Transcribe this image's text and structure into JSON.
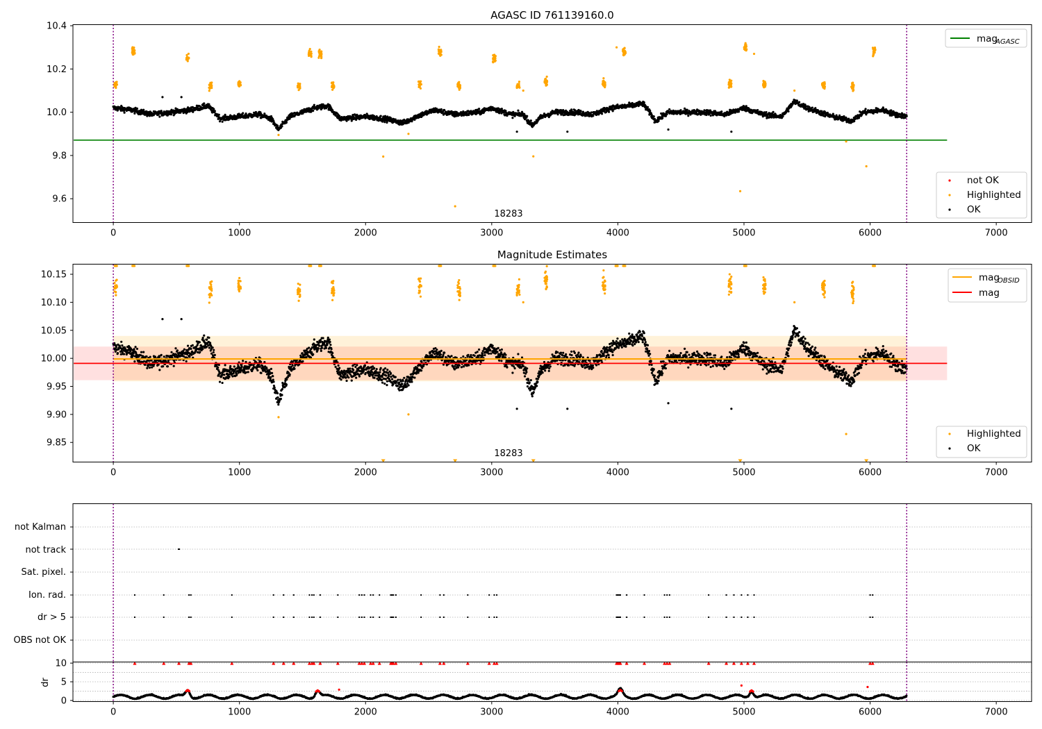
{
  "colors": {
    "ok": "#000000",
    "highlighted": "#ffa500",
    "not_ok": "#ff0000",
    "mag_agasc": "#008000",
    "mag_obsid": "#ffa500",
    "mag": "#ff0000",
    "boundary": "#800080"
  },
  "chart_data": [
    {
      "id": "top",
      "type": "scatter",
      "title": "AGASC ID 761139160.0",
      "xlabel": "",
      "ylabel": "",
      "xlim": [
        -320,
        7280
      ],
      "ylim": [
        9.49,
        10.405
      ],
      "xticks": [
        0,
        1000,
        2000,
        3000,
        4000,
        5000,
        6000,
        7000
      ],
      "xtick_labels": [
        "0",
        "1000",
        "2000",
        "3000",
        "4000",
        "5000",
        "6000",
        "7000"
      ],
      "yticks": [
        9.6,
        9.8,
        10.0,
        10.2,
        10.4
      ],
      "ytick_labels": [
        "9.6",
        "9.8",
        "10.0",
        "10.2",
        "10.4"
      ],
      "obsid_label": "18283",
      "obsid_label_x": 3150,
      "obsid_bounds": [
        0,
        6290
      ],
      "mag_agasc": {
        "value": 9.871,
        "x": [
          0,
          6610
        ]
      },
      "line_legend": [
        {
          "label": "mag",
          "sub": "AGASC",
          "color": "#008000"
        }
      ],
      "legend": [
        {
          "label": "not OK",
          "color": "#ff0000"
        },
        {
          "label": "Highlighted",
          "color": "#ffa500"
        },
        {
          "label": "OK",
          "color": "#000000"
        }
      ],
      "series": [
        {
          "name": "OK",
          "color": "#000000",
          "curve": [
            [
              0,
              10.02
            ],
            [
              150,
              10.01
            ],
            [
              300,
              9.99
            ],
            [
              450,
              10.0
            ],
            [
              600,
              10.01
            ],
            [
              750,
              10.03
            ],
            [
              850,
              9.97
            ],
            [
              1000,
              9.98
            ],
            [
              1150,
              9.99
            ],
            [
              1250,
              9.97
            ],
            [
              1310,
              9.92
            ],
            [
              1400,
              9.98
            ],
            [
              1500,
              10.0
            ],
            [
              1600,
              10.02
            ],
            [
              1700,
              10.03
            ],
            [
              1800,
              9.97
            ],
            [
              2000,
              9.98
            ],
            [
              2150,
              9.97
            ],
            [
              2300,
              9.95
            ],
            [
              2400,
              9.98
            ],
            [
              2550,
              10.01
            ],
            [
              2700,
              9.99
            ],
            [
              2900,
              10.0
            ],
            [
              3000,
              10.02
            ],
            [
              3150,
              9.99
            ],
            [
              3250,
              9.99
            ],
            [
              3320,
              9.94
            ],
            [
              3400,
              9.98
            ],
            [
              3500,
              10.0
            ],
            [
              3650,
              10.0
            ],
            [
              3800,
              9.99
            ],
            [
              3950,
              10.02
            ],
            [
              4100,
              10.03
            ],
            [
              4200,
              10.04
            ],
            [
              4300,
              9.96
            ],
            [
              4400,
              10.0
            ],
            [
              4550,
              10.0
            ],
            [
              4700,
              10.0
            ],
            [
              4850,
              9.99
            ],
            [
              5000,
              10.02
            ],
            [
              5150,
              9.99
            ],
            [
              5300,
              9.98
            ],
            [
              5400,
              10.05
            ],
            [
              5500,
              10.02
            ],
            [
              5700,
              9.98
            ],
            [
              5850,
              9.96
            ],
            [
              5950,
              10.0
            ],
            [
              6100,
              10.01
            ],
            [
              6200,
              9.99
            ],
            [
              6290,
              9.98
            ]
          ],
          "outliers": [
            [
              390,
              10.07
            ],
            [
              540,
              10.07
            ],
            [
              3200,
              9.91
            ],
            [
              3600,
              9.91
            ],
            [
              4400,
              9.92
            ],
            [
              4900,
              9.91
            ]
          ]
        },
        {
          "name": "Highlighted",
          "color": "#ffa500",
          "clusters": [
            [
              20,
              10.13
            ],
            [
              160,
              10.28
            ],
            [
              590,
              10.25
            ],
            [
              770,
              10.12
            ],
            [
              1000,
              10.13
            ],
            [
              1470,
              10.12
            ],
            [
              1560,
              10.27
            ],
            [
              1640,
              10.27
            ],
            [
              1740,
              10.12
            ],
            [
              2430,
              10.13
            ],
            [
              2590,
              10.28
            ],
            [
              2740,
              10.12
            ],
            [
              3020,
              10.25
            ],
            [
              3210,
              10.12
            ],
            [
              3430,
              10.14
            ],
            [
              3890,
              10.13
            ],
            [
              4050,
              10.28
            ],
            [
              4890,
              10.13
            ],
            [
              5010,
              10.3
            ],
            [
              5160,
              10.13
            ],
            [
              5630,
              10.13
            ],
            [
              5860,
              10.12
            ],
            [
              6030,
              10.28
            ]
          ],
          "singles": [
            [
              2140,
              9.795
            ],
            [
              2710,
              9.565
            ],
            [
              3330,
              9.796
            ],
            [
              4970,
              9.635
            ],
            [
              5970,
              9.75
            ],
            [
              5810,
              9.865
            ],
            [
              1310,
              9.895
            ],
            [
              2340,
              9.9
            ],
            [
              3990,
              10.3
            ],
            [
              5080,
              10.27
            ],
            [
              3250,
              10.1
            ],
            [
              5400,
              10.1
            ]
          ]
        }
      ]
    },
    {
      "id": "mid",
      "type": "scatter",
      "title": "Magnitude Estimates",
      "xlabel": "",
      "ylabel": "",
      "xlim": [
        -320,
        7280
      ],
      "ylim": [
        9.815,
        10.168
      ],
      "xticks": [
        0,
        1000,
        2000,
        3000,
        4000,
        5000,
        6000,
        7000
      ],
      "xtick_labels": [
        "0",
        "1000",
        "2000",
        "3000",
        "4000",
        "5000",
        "6000",
        "7000"
      ],
      "yticks": [
        9.85,
        9.9,
        9.95,
        10.0,
        10.05,
        10.1,
        10.15
      ],
      "ytick_labels": [
        "9.85",
        "9.90",
        "9.95",
        "10.00",
        "10.05",
        "10.10",
        "10.15"
      ],
      "obsid_label": "18283",
      "obsid_label_x": 3150,
      "obsid_bounds": [
        0,
        6290
      ],
      "mag_obsid": {
        "value": 9.999,
        "band": [
          9.959,
          10.04
        ],
        "x": [
          0,
          6290
        ]
      },
      "mag": {
        "value": 9.991,
        "band": [
          9.961,
          10.021
        ],
        "x": [
          0,
          6610
        ]
      },
      "line_legend": [
        {
          "label": "mag",
          "sub": "OBSID",
          "color": "#ffa500"
        },
        {
          "label": "mag",
          "sub": "",
          "color": "#ff0000"
        }
      ],
      "legend": [
        {
          "label": "Highlighted",
          "color": "#ffa500"
        },
        {
          "label": "OK",
          "color": "#000000"
        }
      ],
      "clipped_low_x": [
        2140,
        2710,
        3330,
        4970,
        5970
      ],
      "clipped_high_x": [
        20,
        160,
        590,
        1560,
        1640,
        2590,
        3020,
        3990,
        4050,
        5010,
        6030
      ]
    },
    {
      "id": "flags",
      "type": "scatter",
      "title": "",
      "xlabel": "",
      "ylabel": "",
      "xlim": [
        -320,
        7280
      ],
      "rows": [
        "not Kalman",
        "not track",
        "Sat. pixel.",
        "Ion. rad.",
        "dr > 5",
        "OBS not OK"
      ],
      "obsid_bounds": [
        0,
        6290
      ],
      "not_track_x": [
        520
      ],
      "ion_rad_x": [
        170,
        400,
        600,
        615,
        940,
        1270,
        1350,
        1430,
        1555,
        1575,
        1590,
        1640,
        1780,
        1950,
        1970,
        1990,
        2040,
        2060,
        2110,
        2200,
        2210,
        2220,
        2240,
        2440,
        2590,
        2620,
        2810,
        2980,
        3020,
        3040,
        3990,
        4000,
        4010,
        4020,
        4070,
        4210,
        4370,
        4390,
        4410,
        4720,
        4860,
        4920,
        4980,
        5030,
        5080,
        6000,
        6020
      ],
      "dr5_x": [
        170,
        400,
        600,
        615,
        940,
        1270,
        1350,
        1430,
        1555,
        1575,
        1590,
        1640,
        1780,
        1950,
        1970,
        1990,
        2040,
        2060,
        2110,
        2200,
        2210,
        2220,
        2240,
        2440,
        2590,
        2620,
        2810,
        2980,
        3020,
        3040,
        3990,
        4000,
        4010,
        4020,
        4070,
        4210,
        4370,
        4390,
        4410,
        4720,
        4860,
        4920,
        4980,
        5030,
        5080,
        6000,
        6020
      ]
    },
    {
      "id": "dr",
      "type": "scatter",
      "title": "",
      "xlabel": "",
      "ylabel": "dr",
      "xlim": [
        -320,
        7280
      ],
      "ylim": [
        -0.3,
        10.3
      ],
      "yticks": [
        0,
        5,
        10
      ],
      "ytick_labels": [
        "0",
        "5",
        "10"
      ],
      "xticks": [
        0,
        1000,
        2000,
        3000,
        4000,
        5000,
        6000,
        7000
      ],
      "xtick_labels": [
        "0",
        "1000",
        "2000",
        "3000",
        "4000",
        "5000",
        "6000",
        "7000"
      ],
      "obsid_bounds": [
        0,
        6290
      ],
      "clipped_x": [
        170,
        400,
        520,
        600,
        615,
        940,
        1270,
        1350,
        1430,
        1555,
        1575,
        1590,
        1640,
        1780,
        1950,
        1970,
        1990,
        2040,
        2060,
        2110,
        2200,
        2210,
        2220,
        2240,
        2440,
        2590,
        2620,
        2810,
        2980,
        3020,
        3040,
        3990,
        4000,
        4010,
        4020,
        4070,
        4210,
        4370,
        4390,
        4410,
        4720,
        4860,
        4920,
        4980,
        5030,
        5080,
        6000,
        6020
      ],
      "bumps": [
        [
          590,
          2.8
        ],
        [
          1620,
          2.7
        ],
        [
          4020,
          2.8
        ],
        [
          5060,
          2.7
        ]
      ],
      "singles": [
        [
          1790,
          2.9
        ],
        [
          4980,
          4.0
        ],
        [
          5980,
          3.6
        ]
      ]
    }
  ]
}
